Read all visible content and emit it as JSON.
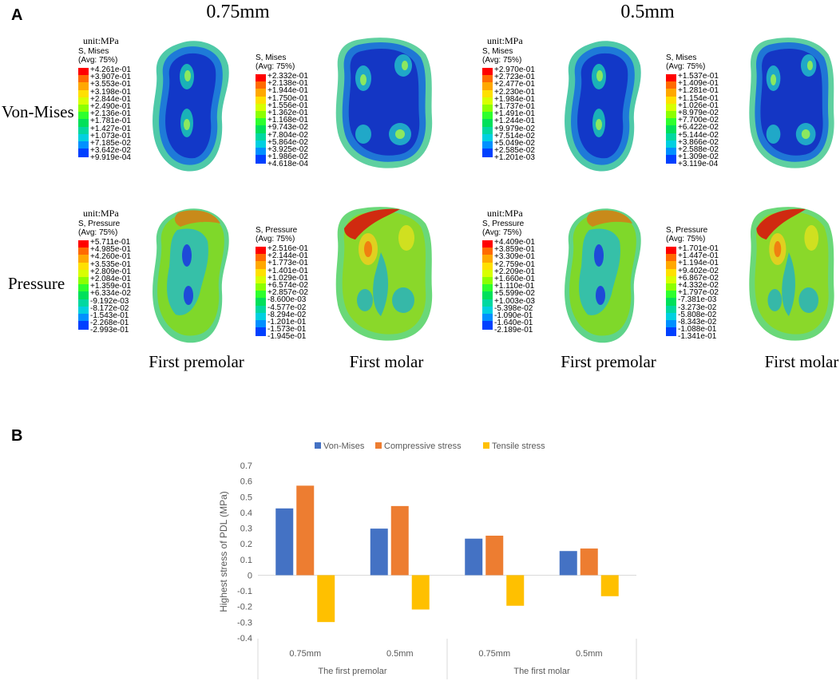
{
  "panel_a": {
    "letter": "A",
    "columns": [
      "0.75mm",
      "0.5mm"
    ],
    "rows": [
      "Von-Mises",
      "Pressure"
    ],
    "tooth_labels": [
      "First premolar",
      "First molar",
      "First premolar",
      "First molar"
    ],
    "unit": "unit:MPa",
    "avg": "(Avg: 75%)",
    "legends": [
      {
        "title": "S, Mises",
        "values": [
          "+4.261e-01",
          "+3.907e-01",
          "+3.553e-01",
          "+3.198e-01",
          "+2.844e-01",
          "+2.490e-01",
          "+2.136e-01",
          "+1.781e-01",
          "+1.427e-01",
          "+1.073e-01",
          "+7.185e-02",
          "+3.642e-02",
          "+9.919e-04"
        ]
      },
      {
        "title": "S, Mises",
        "values": [
          "+2.332e-01",
          "+2.138e-01",
          "+1.944e-01",
          "+1.750e-01",
          "+1.556e-01",
          "+1.362e-01",
          "+1.168e-01",
          "+9.743e-02",
          "+7.804e-02",
          "+5.864e-02",
          "+3.925e-02",
          "+1.986e-02",
          "+4.618e-04"
        ]
      },
      {
        "title": "S, Mises",
        "values": [
          "+2.970e-01",
          "+2.723e-01",
          "+2.477e-01",
          "+2.230e-01",
          "+1.984e-01",
          "+1.737e-01",
          "+1.491e-01",
          "+1.244e-01",
          "+9.979e-02",
          "+7.514e-02",
          "+5.049e-02",
          "+2.585e-02",
          "+1.201e-03"
        ]
      },
      {
        "title": "S, Mises",
        "values": [
          "+1.537e-01",
          "+1.409e-01",
          "+1.281e-01",
          "+1.154e-01",
          "+1.026e-01",
          "+8.979e-02",
          "+7.700e-02",
          "+6.422e-02",
          "+5.144e-02",
          "+3.866e-02",
          "+2.588e-02",
          "+1.309e-02",
          "+3.119e-04"
        ]
      },
      {
        "title": "S, Pressure",
        "values": [
          "+5.711e-01",
          "+4.985e-01",
          "+4.260e-01",
          "+3.535e-01",
          "+2.809e-01",
          "+2.084e-01",
          "+1.359e-01",
          "+6.334e-02",
          "-9.192e-03",
          "-8.172e-02",
          "-1.543e-01",
          "-2.268e-01",
          "-2.993e-01"
        ]
      },
      {
        "title": "S, Pressure",
        "values": [
          "+2.516e-01",
          "+2.144e-01",
          "+1.773e-01",
          "+1.401e-01",
          "+1.029e-01",
          "+6.574e-02",
          "+2.857e-02",
          "-8.600e-03",
          "-4.577e-02",
          "-8.294e-02",
          "-1.201e-01",
          "-1.573e-01",
          "-1.945e-01"
        ]
      },
      {
        "title": "S, Pressure",
        "values": [
          "+4.409e-01",
          "+3.859e-01",
          "+3.309e-01",
          "+2.759e-01",
          "+2.209e-01",
          "+1.660e-01",
          "+1.110e-01",
          "+5.599e-02",
          "+1.003e-03",
          "-5.398e-02",
          "-1.090e-01",
          "-1.640e-01",
          "-2.189e-01"
        ]
      },
      {
        "title": "S, Pressure",
        "values": [
          "+1.701e-01",
          "+1.447e-01",
          "+1.194e-01",
          "+9.402e-02",
          "+6.867e-02",
          "+4.332e-02",
          "+1.797e-02",
          "-7.381e-03",
          "-3.273e-02",
          "-5.808e-02",
          "-8.343e-02",
          "-1.088e-01",
          "-1.341e-01"
        ]
      }
    ],
    "scale_colors": [
      "#ff0000",
      "#ff6a00",
      "#ffa800",
      "#ffe000",
      "#d8ff00",
      "#8cff00",
      "#2eff2e",
      "#00e05a",
      "#00d8a0",
      "#00d0e0",
      "#0090ff",
      "#0040ff",
      "#0000e0"
    ]
  },
  "panel_b": {
    "letter": "B"
  },
  "chart_data": {
    "type": "bar",
    "title": "",
    "ylabel": "Highest stress of PDL (MPa)",
    "xlabel": "",
    "categories": [
      "0.75mm",
      "0.5mm",
      "0.75mm",
      "0.5mm"
    ],
    "groups": [
      "The first premolar",
      "The first molar"
    ],
    "series": [
      {
        "name": "Von-Mises",
        "color": "#4472c4",
        "values": [
          0.426,
          0.297,
          0.233,
          0.154
        ]
      },
      {
        "name": "Compressive stress",
        "color": "#ed7d31",
        "values": [
          0.571,
          0.441,
          0.252,
          0.17
        ]
      },
      {
        "name": "Tensile stress",
        "color": "#ffc000",
        "values": [
          -0.299,
          -0.219,
          -0.195,
          -0.134
        ]
      }
    ],
    "ylim": [
      -0.4,
      0.7
    ],
    "yticks": [
      "0.7",
      "0.6",
      "0.5",
      "0.4",
      "0.3",
      "0.2",
      "0.1",
      "0",
      "-0.1",
      "-0.2",
      "-0.3",
      "-0.4"
    ],
    "legend_position": "top"
  }
}
